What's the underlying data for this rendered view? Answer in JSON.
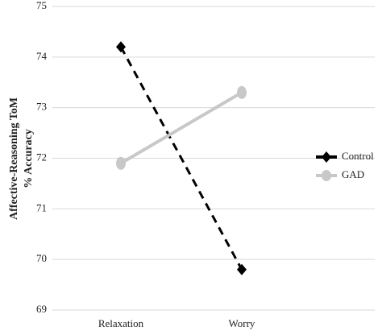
{
  "chart_data": {
    "type": "line",
    "y_label": [
      "Affective-Reasoning ToM",
      "% Accuracy"
    ],
    "categories": [
      "Relaxation",
      "Worry"
    ],
    "series": [
      {
        "name": "Control",
        "color": "#000000",
        "line_style": "dashed",
        "marker": "diamond",
        "values": [
          74.2,
          69.8
        ]
      },
      {
        "name": "GAD",
        "color": "#c8c8c8",
        "line_style": "solid",
        "marker": "circle",
        "values": [
          71.9,
          73.3
        ]
      }
    ],
    "ylim": [
      69,
      75
    ],
    "yticks": [
      69,
      70,
      71,
      72,
      73,
      74,
      75
    ],
    "grid": true,
    "legend": "right"
  }
}
